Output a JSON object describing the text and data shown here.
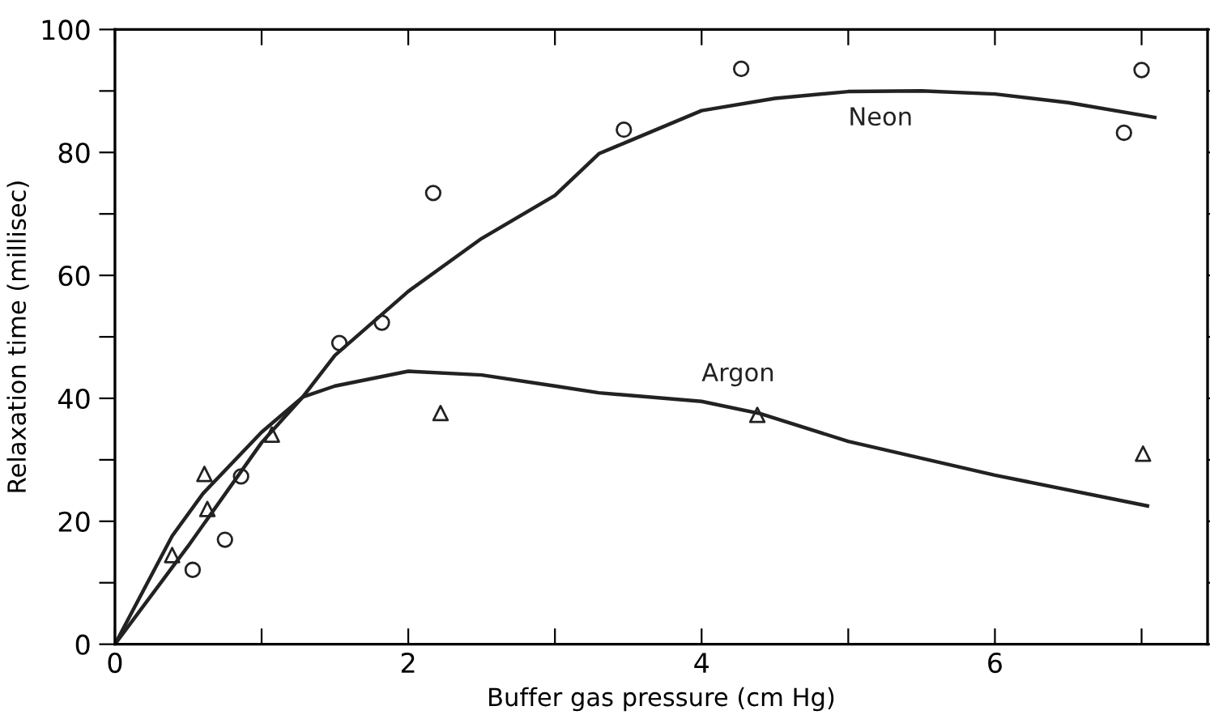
{
  "chart_data": {
    "type": "scatter",
    "xlabel": "Buffer gas pressure (cm Hg)",
    "ylabel": "Relaxation time (millisec)",
    "xlim": [
      0,
      7.45
    ],
    "ylim": [
      0,
      100
    ],
    "xticks": [
      0,
      {
        "value": 1,
        "label": null
      },
      2,
      {
        "value": 3,
        "label": null
      },
      4,
      {
        "value": 5,
        "label": null
      },
      6,
      {
        "value": 7,
        "label": null
      }
    ],
    "yticks": [
      0,
      {
        "value": 10,
        "label": null
      },
      20,
      {
        "value": 30,
        "label": null
      },
      40,
      {
        "value": 50,
        "label": null
      },
      60,
      {
        "value": 70,
        "label": null
      },
      80,
      {
        "value": 90,
        "label": null
      },
      100
    ],
    "grid": false,
    "series": [
      {
        "marker": "circle",
        "color": "#222222",
        "x": [
          0.53,
          0.75,
          0.86,
          1.53,
          1.82,
          2.17,
          3.47,
          4.27,
          6.88,
          7.0
        ],
        "values": [
          12.1,
          17,
          27.3,
          49,
          52.3,
          73.4,
          83.7,
          93.6,
          83.2,
          93.4
        ]
      },
      {
        "marker": "triangle",
        "color": "#222222",
        "x": [
          0.39,
          0.61,
          0.63,
          1.07,
          2.22,
          4.38,
          7.01
        ],
        "values": [
          14.5,
          27.7,
          22,
          34.1,
          37.6,
          37.3,
          31
        ]
      },
      {
        "type": "line",
        "name": "Neon",
        "marker": "none",
        "line_style": "solid",
        "color": "#222222",
        "x": [
          0,
          0.5,
          1,
          1.28,
          1.5,
          2,
          2.5,
          3,
          3.3,
          3.5,
          4,
          4.5,
          5,
          5.5,
          6,
          6.5,
          7.09
        ],
        "values": [
          0,
          16,
          32.8,
          40.2,
          47,
          57.4,
          66,
          73,
          79.8,
          81.8,
          86.8,
          88.8,
          89.9,
          90,
          89.5,
          88.1,
          85.7
        ]
      },
      {
        "type": "line",
        "name": "Argon",
        "marker": "none",
        "line_style": "solid",
        "color": "#222222",
        "x": [
          0,
          0.39,
          0.6,
          1,
          1.28,
          1.5,
          2,
          2.5,
          3,
          3.3,
          4,
          4.4,
          5,
          6,
          7.04
        ],
        "values": [
          0,
          17.6,
          24.5,
          34.5,
          40.2,
          42,
          44.4,
          43.8,
          42,
          40.9,
          39.5,
          37.5,
          33,
          27.5,
          22.5
        ]
      }
    ]
  }
}
